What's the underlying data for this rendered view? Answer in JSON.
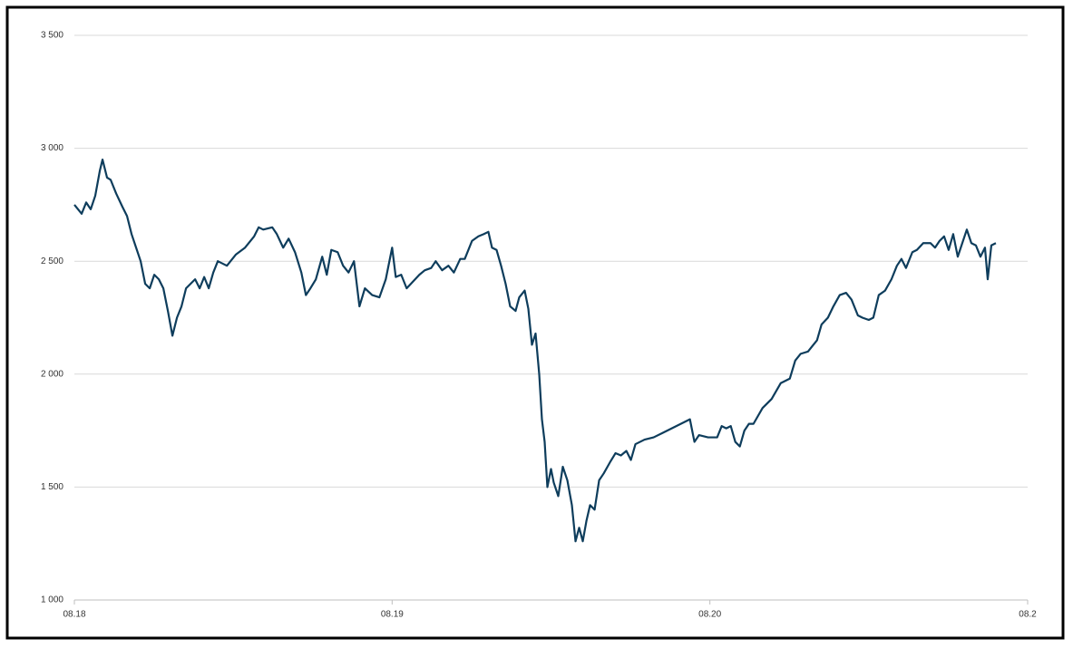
{
  "chart_data": {
    "type": "line",
    "x": [
      0,
      8,
      13,
      18,
      23,
      28,
      31,
      36,
      40,
      46,
      53,
      58,
      63,
      68,
      73,
      78,
      83,
      88,
      93,
      98,
      103,
      108,
      113,
      118,
      123,
      128,
      133,
      138,
      143,
      148,
      153,
      158,
      168,
      178,
      188,
      198,
      203,
      208,
      218,
      223,
      230,
      236,
      243,
      250,
      255,
      260,
      266,
      273,
      278,
      283,
      290,
      296,
      302,
      308,
      314,
      320,
      328,
      336,
      343,
      350,
      354,
      360,
      366,
      373,
      380,
      386,
      393,
      398,
      405,
      412,
      418,
      425,
      430,
      438,
      445,
      451,
      456,
      460,
      465,
      470,
      475,
      480,
      486,
      490,
      496,
      500,
      504,
      508,
      512,
      515,
      518,
      521,
      525,
      528,
      533,
      538,
      543,
      548,
      552,
      556,
      560,
      564,
      568,
      573,
      578,
      583,
      590,
      596,
      602,
      608,
      613,
      618,
      628,
      638,
      648,
      658,
      668,
      678,
      683,
      688,
      698,
      708,
      713,
      718,
      723,
      728,
      733,
      738,
      743,
      748,
      758,
      768,
      778,
      788,
      794,
      800,
      808,
      818,
      823,
      830,
      836,
      843,
      850,
      856,
      863,
      868,
      875,
      880,
      886,
      893,
      900,
      906,
      911,
      916,
      923,
      928,
      935,
      943,
      948,
      953,
      958,
      963,
      968,
      973,
      978,
      983,
      988,
      993,
      998,
      1003,
      1006,
      1010,
      1015
    ],
    "series": [
      {
        "color": "#0e3d5c",
        "values": [
          2750,
          2710,
          2760,
          2730,
          2790,
          2900,
          2950,
          2870,
          2860,
          2800,
          2740,
          2700,
          2620,
          2560,
          2500,
          2400,
          2380,
          2440,
          2420,
          2380,
          2280,
          2170,
          2250,
          2300,
          2380,
          2400,
          2420,
          2380,
          2430,
          2380,
          2450,
          2500,
          2480,
          2530,
          2560,
          2610,
          2650,
          2640,
          2650,
          2620,
          2560,
          2600,
          2540,
          2450,
          2350,
          2380,
          2420,
          2520,
          2440,
          2550,
          2540,
          2480,
          2450,
          2500,
          2300,
          2380,
          2350,
          2340,
          2420,
          2560,
          2430,
          2440,
          2380,
          2410,
          2440,
          2460,
          2470,
          2500,
          2460,
          2480,
          2450,
          2510,
          2510,
          2590,
          2610,
          2620,
          2630,
          2560,
          2550,
          2480,
          2400,
          2300,
          2280,
          2340,
          2370,
          2290,
          2130,
          2180,
          2000,
          1800,
          1700,
          1500,
          1580,
          1520,
          1460,
          1590,
          1530,
          1420,
          1260,
          1320,
          1260,
          1350,
          1420,
          1400,
          1530,
          1560,
          1610,
          1650,
          1640,
          1660,
          1620,
          1690,
          1710,
          1720,
          1740,
          1760,
          1780,
          1800,
          1700,
          1730,
          1720,
          1720,
          1770,
          1760,
          1770,
          1700,
          1680,
          1750,
          1780,
          1780,
          1850,
          1890,
          1960,
          1980,
          2060,
          2090,
          2100,
          2150,
          2220,
          2250,
          2300,
          2350,
          2360,
          2330,
          2260,
          2250,
          2240,
          2250,
          2350,
          2370,
          2420,
          2480,
          2510,
          2470,
          2540,
          2550,
          2580,
          2580,
          2560,
          2590,
          2610,
          2550,
          2620,
          2520,
          2580,
          2640,
          2580,
          2570,
          2520,
          2560,
          2420,
          2570,
          2580
        ]
      }
    ],
    "xlim": [
      0,
      1050
    ],
    "xticks": [
      {
        "value": 0,
        "label": "08.18"
      },
      {
        "value": 350,
        "label": "08.19"
      },
      {
        "value": 700,
        "label": "08.20"
      },
      {
        "value": 1050,
        "label": "08.2"
      }
    ],
    "ylim": [
      1000,
      3500
    ],
    "yticks": [
      {
        "value": 1000,
        "label": "1 000"
      },
      {
        "value": 1500,
        "label": "1 500"
      },
      {
        "value": 2000,
        "label": "2 000"
      },
      {
        "value": 2500,
        "label": "2 500"
      },
      {
        "value": 3000,
        "label": "3 000"
      },
      {
        "value": 3500,
        "label": "3 500"
      }
    ],
    "grid": true
  }
}
